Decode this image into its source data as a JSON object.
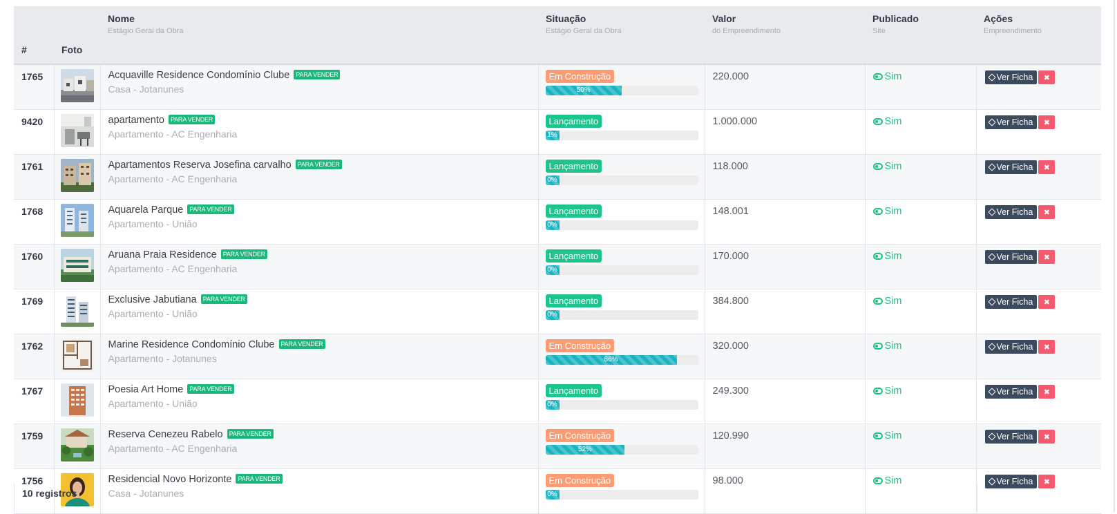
{
  "table": {
    "headers": {
      "id": "#",
      "foto": "Foto",
      "nome": "Nome",
      "nome_sub": "Estágio Geral da Obra",
      "situacao": "Situação",
      "situacao_sub": "Estágio Geral da Obra",
      "valor": "Valor",
      "valor_sub": "do Empreendimento",
      "publicado": "Publicado",
      "publicado_sub": "Site",
      "acoes": "Ações",
      "acoes_sub": "Empreendimento"
    },
    "rows": [
      {
        "id": "1765",
        "name": "Acquaville Residence Condomínio Clube",
        "tag": "PARA VENDER",
        "type": "Casa - Jotanunes",
        "status": "Em Construção",
        "status_kind": "construcao",
        "progress": 50,
        "progress_label": "50%",
        "value": "220.000",
        "published": "Sim",
        "ver_label": "Ver Ficha",
        "del_label": "✖",
        "thumb": "street-houses"
      },
      {
        "id": "9420",
        "name": "apartamento",
        "tag": "PARA VENDER",
        "type": "Apartamento - AC Engenharia",
        "status": "Lançamento",
        "status_kind": "lancamento",
        "progress": 1,
        "progress_label": "1%",
        "value": "1.000.000",
        "published": "Sim",
        "ver_label": "Ver Ficha",
        "del_label": "✖",
        "thumb": "interior"
      },
      {
        "id": "1761",
        "name": "Apartamentos Reserva Josefina carvalho",
        "tag": "PARA VENDER",
        "type": "Apartamento - AC Engenharia",
        "status": "Lançamento",
        "status_kind": "lancamento",
        "progress": 0,
        "progress_label": "0%",
        "value": "118.000",
        "published": "Sim",
        "ver_label": "Ver Ficha",
        "del_label": "✖",
        "thumb": "buildings"
      },
      {
        "id": "1768",
        "name": "Aquarela Parque",
        "tag": "PARA VENDER",
        "type": "Apartamento - União",
        "status": "Lançamento",
        "status_kind": "lancamento",
        "progress": 0,
        "progress_label": "0%",
        "value": "148.001",
        "published": "Sim",
        "ver_label": "Ver Ficha",
        "del_label": "✖",
        "thumb": "towers-blue"
      },
      {
        "id": "1760",
        "name": "Aruana Praia Residence",
        "tag": "PARA VENDER",
        "type": "Apartamento - AC Engenharia",
        "status": "Lançamento",
        "status_kind": "lancamento",
        "progress": 0,
        "progress_label": "0%",
        "value": "170.000",
        "published": "Sim",
        "ver_label": "Ver Ficha",
        "del_label": "✖",
        "thumb": "green-building"
      },
      {
        "id": "1769",
        "name": "Exclusive Jabutiana",
        "tag": "PARA VENDER",
        "type": "Apartamento - União",
        "status": "Lançamento",
        "status_kind": "lancamento",
        "progress": 0,
        "progress_label": "0%",
        "value": "384.800",
        "published": "Sim",
        "ver_label": "Ver Ficha",
        "del_label": "✖",
        "thumb": "tall-tower"
      },
      {
        "id": "1762",
        "name": "Marine Residence Condomínio Clube",
        "tag": "PARA VENDER",
        "type": "Apartamento - Jotanunes",
        "status": "Em Construção",
        "status_kind": "construcao",
        "progress": 86,
        "progress_label": "86%",
        "value": "320.000",
        "published": "Sim",
        "ver_label": "Ver Ficha",
        "del_label": "✖",
        "thumb": "floorplan"
      },
      {
        "id": "1767",
        "name": "Poesia Art Home",
        "tag": "PARA VENDER",
        "type": "Apartamento - União",
        "status": "Lançamento",
        "status_kind": "lancamento",
        "progress": 0,
        "progress_label": "0%",
        "value": "249.300",
        "published": "Sim",
        "ver_label": "Ver Ficha",
        "del_label": "✖",
        "thumb": "brick-tower"
      },
      {
        "id": "1759",
        "name": "Reserva Cenezeu Rabelo",
        "tag": "PARA VENDER",
        "type": "Apartamento - AC Engenharia",
        "status": "Em Construção",
        "status_kind": "construcao",
        "progress": 52,
        "progress_label": "52%",
        "value": "120.990",
        "published": "Sim",
        "ver_label": "Ver Ficha",
        "del_label": "✖",
        "thumb": "garden"
      },
      {
        "id": "1756",
        "name": "Residencial Novo Horizonte",
        "tag": "PARA VENDER",
        "type": "Casa - Jotanunes",
        "status": "Em Construção",
        "status_kind": "construcao",
        "progress": 0,
        "progress_label": "0%",
        "value": "98.000",
        "published": "Sim",
        "ver_label": "Ver Ficha",
        "del_label": "✖",
        "thumb": "person"
      }
    ]
  },
  "footer": {
    "count_label": "10 registros"
  },
  "colors": {
    "construcao": "#fd9c73",
    "lancamento": "#1dc48c",
    "progress": "#1ab3c1",
    "published": "#19c27f",
    "tag": "#19b97b",
    "ver_button": "#3c4a5e",
    "del_button": "#f4596f"
  }
}
